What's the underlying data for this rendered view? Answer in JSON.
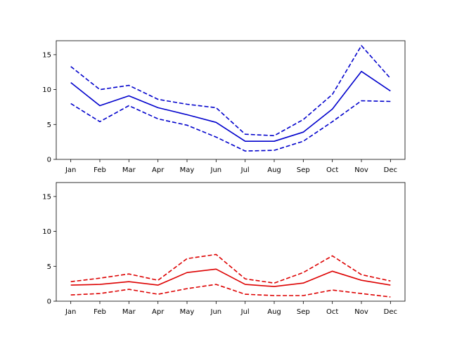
{
  "chart_data": [
    {
      "type": "line",
      "categories": [
        "Jan",
        "Feb",
        "Mar",
        "Apr",
        "May",
        "Jun",
        "Jul",
        "Aug",
        "Sep",
        "Oct",
        "Nov",
        "Dec"
      ],
      "ylim": [
        0,
        17
      ],
      "yticks": [
        0,
        5,
        10,
        15
      ],
      "grid": false,
      "color": "#0000cc",
      "series": [
        {
          "style": "dashed",
          "values": [
            13.3,
            10.0,
            10.6,
            8.6,
            7.9,
            7.4,
            3.6,
            3.4,
            5.7,
            9.3,
            16.3,
            11.6
          ]
        },
        {
          "style": "solid",
          "values": [
            11.0,
            7.7,
            9.1,
            7.4,
            6.4,
            5.3,
            2.6,
            2.6,
            3.9,
            7.2,
            12.6,
            9.8
          ]
        },
        {
          "style": "dashed",
          "values": [
            8.0,
            5.4,
            7.7,
            5.8,
            4.9,
            3.2,
            1.2,
            1.3,
            2.6,
            5.4,
            8.4,
            8.3
          ]
        }
      ]
    },
    {
      "type": "line",
      "categories": [
        "Jan",
        "Feb",
        "Mar",
        "Apr",
        "May",
        "Jun",
        "Jul",
        "Aug",
        "Sep",
        "Oct",
        "Nov",
        "Dec"
      ],
      "ylim": [
        0,
        17
      ],
      "yticks": [
        0,
        5,
        10,
        15
      ],
      "grid": false,
      "color": "#dd0000",
      "series": [
        {
          "style": "dashed",
          "values": [
            2.8,
            3.3,
            3.9,
            3.0,
            6.1,
            6.7,
            3.2,
            2.6,
            4.1,
            6.5,
            3.8,
            2.9
          ]
        },
        {
          "style": "solid",
          "values": [
            2.3,
            2.4,
            2.8,
            2.3,
            4.1,
            4.6,
            2.4,
            2.1,
            2.6,
            4.3,
            3.0,
            2.3
          ]
        },
        {
          "style": "dashed",
          "values": [
            0.9,
            1.1,
            1.7,
            1.0,
            1.8,
            2.4,
            1.0,
            0.8,
            0.8,
            1.6,
            1.1,
            0.6
          ]
        }
      ]
    }
  ]
}
